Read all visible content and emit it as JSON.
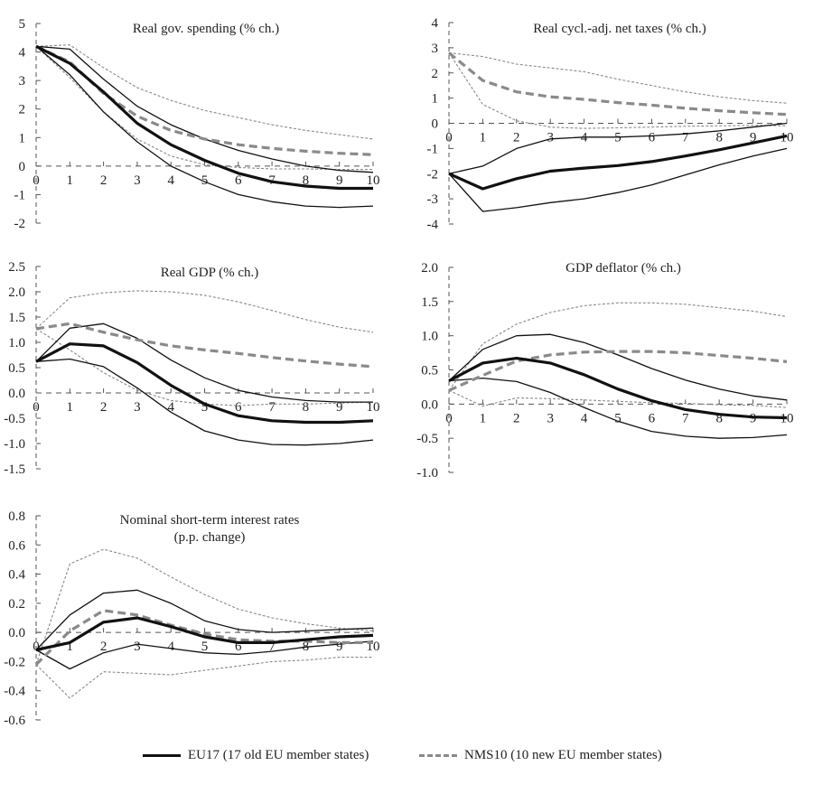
{
  "legend": {
    "eu17": "EU17 (17 old EU member states)",
    "nms10": "NMS10 (10 new EU member states)"
  },
  "colors": {
    "eu17": "#111111",
    "nms10": "#8a8a8a",
    "eu17_band": "#111111",
    "nms10_band": "#8a8a8a",
    "axis": "#555555"
  },
  "chart_data": [
    {
      "type": "line",
      "title": [
        "Real gov. spending (% ch.)"
      ],
      "x": [
        0,
        1,
        2,
        3,
        4,
        5,
        6,
        7,
        8,
        9,
        10
      ],
      "xticks": [
        "0",
        "1",
        "2",
        "3",
        "4",
        "5",
        "6",
        "7",
        "8",
        "9",
        "10"
      ],
      "ylim": [
        -2,
        5
      ],
      "yticks": [
        5,
        4,
        3,
        2,
        1,
        0,
        -1,
        -2
      ],
      "ytick_labels": [
        "5",
        "4",
        "3",
        "2",
        "1",
        "0",
        "-1",
        "-2"
      ],
      "series": [
        {
          "name": "EU17",
          "role": "mean",
          "values": [
            4.2,
            3.6,
            2.6,
            1.5,
            0.75,
            0.2,
            -0.25,
            -0.55,
            -0.7,
            -0.78,
            -0.78
          ]
        },
        {
          "name": "EU17 upper band",
          "role": "band",
          "values": [
            4.2,
            4.1,
            3.05,
            2.1,
            1.45,
            0.95,
            0.55,
            0.25,
            0.0,
            -0.15,
            -0.22
          ]
        },
        {
          "name": "EU17 lower band",
          "role": "band",
          "values": [
            4.2,
            3.2,
            1.9,
            0.85,
            0.0,
            -0.55,
            -1.0,
            -1.25,
            -1.4,
            -1.45,
            -1.4
          ]
        },
        {
          "name": "NMS10",
          "role": "mean",
          "values": [
            4.2,
            3.65,
            2.55,
            1.75,
            1.25,
            0.95,
            0.75,
            0.62,
            0.52,
            0.45,
            0.4
          ]
        },
        {
          "name": "NMS10 upper band",
          "role": "band",
          "values": [
            4.2,
            4.25,
            3.45,
            2.75,
            2.3,
            1.95,
            1.7,
            1.45,
            1.25,
            1.1,
            0.95
          ]
        },
        {
          "name": "NMS10 lower band",
          "role": "band",
          "values": [
            4.2,
            3.1,
            1.9,
            0.95,
            0.35,
            0.05,
            -0.05,
            -0.1,
            -0.1,
            -0.12,
            -0.12
          ]
        }
      ]
    },
    {
      "type": "line",
      "title": [
        "Real cycl.-adj. net taxes (% ch.)"
      ],
      "x": [
        0,
        1,
        2,
        3,
        4,
        5,
        6,
        7,
        8,
        9,
        10
      ],
      "xticks": [
        "0",
        "1",
        "2",
        "3",
        "4",
        "5",
        "6",
        "7",
        "8",
        "9",
        "10"
      ],
      "ylim": [
        -4,
        4
      ],
      "yticks": [
        4,
        3,
        2,
        1,
        0,
        -1,
        -2,
        -3,
        -4
      ],
      "ytick_labels": [
        "4",
        "3",
        "2",
        "1",
        "0",
        "-1",
        "-2",
        "-3",
        "-4"
      ],
      "series": [
        {
          "name": "EU17",
          "role": "mean",
          "values": [
            -2.0,
            -2.6,
            -2.2,
            -1.9,
            -1.78,
            -1.68,
            -1.52,
            -1.3,
            -1.05,
            -0.78,
            -0.5
          ]
        },
        {
          "name": "EU17 upper band",
          "role": "band",
          "values": [
            -2.0,
            -1.7,
            -1.0,
            -0.62,
            -0.55,
            -0.55,
            -0.5,
            -0.42,
            -0.3,
            -0.15,
            0.0
          ]
        },
        {
          "name": "EU17 lower band",
          "role": "band",
          "values": [
            -2.0,
            -3.5,
            -3.35,
            -3.15,
            -3.0,
            -2.75,
            -2.45,
            -2.05,
            -1.65,
            -1.3,
            -1.0
          ]
        },
        {
          "name": "NMS10",
          "role": "mean",
          "values": [
            2.8,
            1.7,
            1.25,
            1.05,
            0.95,
            0.82,
            0.72,
            0.6,
            0.5,
            0.42,
            0.35
          ]
        },
        {
          "name": "NMS10 upper band",
          "role": "band",
          "values": [
            2.8,
            2.65,
            2.35,
            2.2,
            2.05,
            1.75,
            1.5,
            1.25,
            1.05,
            0.9,
            0.8
          ]
        },
        {
          "name": "NMS10 lower band",
          "role": "band",
          "values": [
            2.8,
            0.75,
            0.1,
            -0.15,
            -0.2,
            -0.18,
            -0.15,
            -0.12,
            -0.1,
            -0.08,
            -0.1
          ]
        }
      ]
    },
    {
      "type": "line",
      "title": [
        "Real GDP (% ch.)"
      ],
      "x": [
        0,
        1,
        2,
        3,
        4,
        5,
        6,
        7,
        8,
        9,
        10
      ],
      "xticks": [
        "0",
        "1",
        "2",
        "3",
        "4",
        "5",
        "6",
        "7",
        "8",
        "9",
        "10"
      ],
      "ylim": [
        -1.5,
        2.5
      ],
      "yticks": [
        2.5,
        2.0,
        1.5,
        1.0,
        0.5,
        0.0,
        -0.5,
        -1.0,
        -1.5
      ],
      "ytick_labels": [
        "2.5",
        "2.0",
        "1.5",
        "1.0",
        "0.5",
        "0.0",
        "-0.5",
        "-1.0",
        "-1.5"
      ],
      "series": [
        {
          "name": "EU17",
          "role": "mean",
          "values": [
            0.62,
            0.97,
            0.93,
            0.6,
            0.15,
            -0.22,
            -0.45,
            -0.55,
            -0.58,
            -0.58,
            -0.55
          ]
        },
        {
          "name": "EU17 upper band",
          "role": "band",
          "values": [
            0.62,
            1.28,
            1.37,
            1.08,
            0.65,
            0.3,
            0.05,
            -0.08,
            -0.15,
            -0.18,
            -0.18
          ]
        },
        {
          "name": "EU17 lower band",
          "role": "band",
          "values": [
            0.62,
            0.67,
            0.52,
            0.1,
            -0.38,
            -0.75,
            -0.93,
            -1.02,
            -1.03,
            -1.0,
            -0.93
          ]
        },
        {
          "name": "NMS10",
          "role": "mean",
          "values": [
            1.27,
            1.37,
            1.2,
            1.05,
            0.93,
            0.85,
            0.78,
            0.7,
            0.63,
            0.57,
            0.52
          ]
        },
        {
          "name": "NMS10 upper band",
          "role": "band",
          "values": [
            1.27,
            1.88,
            1.98,
            2.02,
            2.0,
            1.93,
            1.8,
            1.63,
            1.45,
            1.3,
            1.2
          ]
        },
        {
          "name": "NMS10 lower band",
          "role": "band",
          "values": [
            1.27,
            0.85,
            0.4,
            0.05,
            -0.15,
            -0.22,
            -0.25,
            -0.22,
            -0.22,
            -0.2,
            -0.18
          ]
        }
      ]
    },
    {
      "type": "line",
      "title": [
        "GDP deflator (% ch.)"
      ],
      "x": [
        0,
        1,
        2,
        3,
        4,
        5,
        6,
        7,
        8,
        9,
        10
      ],
      "xticks": [
        "0",
        "1",
        "2",
        "3",
        "4",
        "5",
        "6",
        "7",
        "8",
        "9",
        "10"
      ],
      "ylim": [
        -1.0,
        2.0
      ],
      "yticks": [
        2.0,
        1.5,
        1.0,
        0.5,
        0.0,
        -0.5,
        -1.0
      ],
      "ytick_labels": [
        "2.0",
        "1.5",
        "1.0",
        "0.5",
        "0.0",
        "-0.5",
        "-1.0"
      ],
      "series": [
        {
          "name": "EU17",
          "role": "mean",
          "values": [
            0.34,
            0.6,
            0.67,
            0.6,
            0.43,
            0.22,
            0.05,
            -0.08,
            -0.15,
            -0.19,
            -0.2
          ]
        },
        {
          "name": "EU17 upper band",
          "role": "band",
          "values": [
            0.34,
            0.8,
            1.0,
            1.02,
            0.9,
            0.72,
            0.52,
            0.35,
            0.22,
            0.12,
            0.06
          ]
        },
        {
          "name": "EU17 lower band",
          "role": "band",
          "values": [
            0.34,
            0.38,
            0.33,
            0.17,
            -0.05,
            -0.25,
            -0.4,
            -0.47,
            -0.5,
            -0.49,
            -0.45
          ]
        },
        {
          "name": "NMS10",
          "role": "mean",
          "values": [
            0.2,
            0.42,
            0.63,
            0.72,
            0.76,
            0.77,
            0.77,
            0.75,
            0.71,
            0.67,
            0.62
          ]
        },
        {
          "name": "NMS10 upper band",
          "role": "band",
          "values": [
            0.2,
            0.88,
            1.17,
            1.34,
            1.44,
            1.48,
            1.48,
            1.46,
            1.41,
            1.36,
            1.28
          ]
        },
        {
          "name": "NMS10 lower band",
          "role": "band",
          "values": [
            0.2,
            -0.03,
            0.09,
            0.08,
            0.06,
            0.04,
            0.02,
            0.01,
            -0.01,
            -0.02,
            -0.05
          ]
        }
      ]
    },
    {
      "type": "line",
      "title": [
        "Nominal short-term interest rates",
        "(p.p. change)"
      ],
      "x": [
        0,
        1,
        2,
        3,
        4,
        5,
        6,
        7,
        8,
        9,
        10
      ],
      "xticks": [
        "0",
        "1",
        "2",
        "3",
        "4",
        "5",
        "6",
        "7",
        "8",
        "9",
        "10"
      ],
      "ylim": [
        -0.6,
        0.8
      ],
      "yticks": [
        0.8,
        0.6,
        0.4,
        0.2,
        0.0,
        -0.2,
        -0.4,
        -0.6
      ],
      "ytick_labels": [
        "0.8",
        "0.6",
        "0.4",
        "0.2",
        "0.0",
        "-0.2",
        "-0.4",
        "-0.6"
      ],
      "series": [
        {
          "name": "EU17",
          "role": "mean",
          "values": [
            -0.12,
            -0.07,
            0.07,
            0.1,
            0.04,
            -0.03,
            -0.07,
            -0.07,
            -0.05,
            -0.03,
            -0.02
          ]
        },
        {
          "name": "EU17 upper band",
          "role": "band",
          "values": [
            -0.12,
            0.12,
            0.27,
            0.29,
            0.2,
            0.08,
            0.02,
            0.0,
            0.01,
            0.02,
            0.03
          ]
        },
        {
          "name": "EU17 lower band",
          "role": "band",
          "values": [
            -0.12,
            -0.25,
            -0.14,
            -0.08,
            -0.11,
            -0.14,
            -0.15,
            -0.13,
            -0.1,
            -0.08,
            -0.06
          ]
        },
        {
          "name": "NMS10",
          "role": "mean",
          "values": [
            -0.22,
            0.01,
            0.15,
            0.12,
            0.05,
            -0.01,
            -0.05,
            -0.06,
            -0.06,
            -0.07,
            -0.07
          ]
        },
        {
          "name": "NMS10 upper band",
          "role": "band",
          "values": [
            -0.22,
            0.47,
            0.57,
            0.51,
            0.38,
            0.26,
            0.16,
            0.1,
            0.06,
            0.03,
            0.01
          ]
        },
        {
          "name": "NMS10 lower band",
          "role": "band",
          "values": [
            -0.22,
            -0.45,
            -0.27,
            -0.28,
            -0.29,
            -0.26,
            -0.23,
            -0.2,
            -0.19,
            -0.17,
            -0.17
          ]
        }
      ]
    }
  ]
}
